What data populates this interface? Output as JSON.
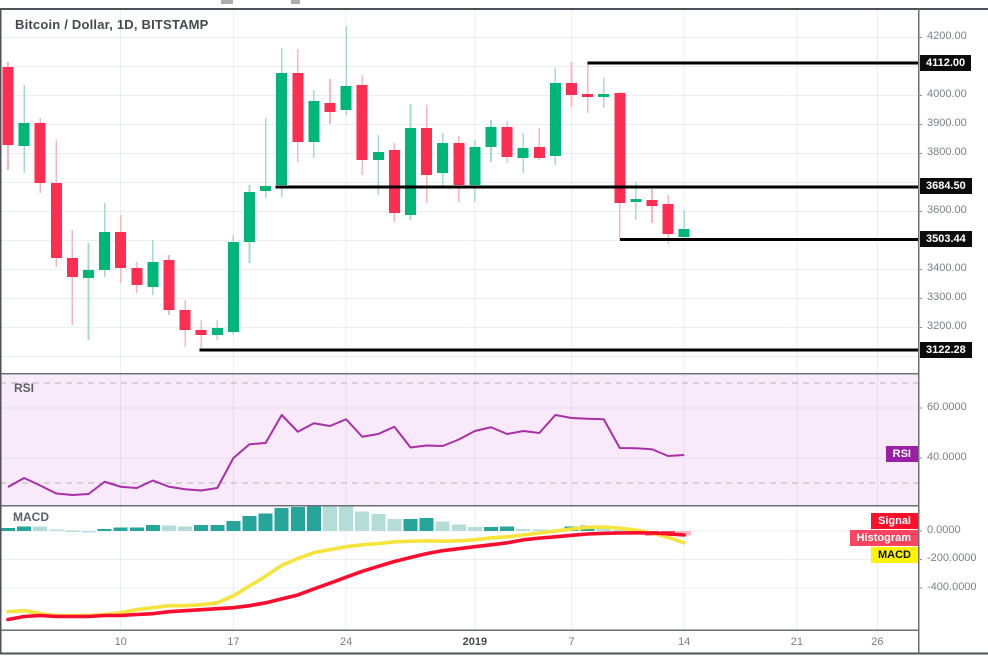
{
  "title": "Bitcoin / Dollar, 1D, BITSTAMP",
  "panes": {
    "rsi_label": "RSI",
    "macd_label": "MACD"
  },
  "badges": {
    "rsi": "RSI",
    "signal": "Signal",
    "histogram": "Histogram",
    "macd": "MACD"
  },
  "price_axis": {
    "ticks": [
      {
        "value": 4200,
        "label": "4200.00"
      },
      {
        "value": 4000,
        "label": "4000.00"
      },
      {
        "value": 3900,
        "label": "3900.00"
      },
      {
        "value": 3800,
        "label": "3800.00"
      },
      {
        "value": 3600,
        "label": "3600.00"
      },
      {
        "value": 3400,
        "label": "3400.00"
      },
      {
        "value": 3300,
        "label": "3300.00"
      },
      {
        "value": 3200,
        "label": "3200.00"
      }
    ]
  },
  "rsi_axis": {
    "ticks": [
      {
        "value": 60,
        "label": "60.0000"
      },
      {
        "value": 40,
        "label": "40.0000"
      }
    ],
    "band_levels": [
      70,
      30
    ]
  },
  "macd_axis": {
    "ticks": [
      {
        "value": 0,
        "label": "0.0000"
      },
      {
        "value": -200,
        "label": "-200.0000"
      },
      {
        "value": -400,
        "label": "-400.0000"
      }
    ]
  },
  "time_axis": {
    "ticks": [
      {
        "label": "10",
        "index": 7,
        "bold": false
      },
      {
        "label": "17",
        "index": 14,
        "bold": false
      },
      {
        "label": "24",
        "index": 21,
        "bold": false
      },
      {
        "label": "2019",
        "index": 29,
        "bold": true
      },
      {
        "label": "7",
        "index": 35,
        "bold": false
      },
      {
        "label": "14",
        "index": 42,
        "bold": false
      },
      {
        "label": "21",
        "index": 49,
        "bold": false
      },
      {
        "label": "26",
        "index": 54,
        "bold": false
      }
    ]
  },
  "chart_data": {
    "type": "candlestick",
    "title": "Bitcoin / Dollar, 1D, BITSTAMP",
    "price_range_visible": [
      3046,
      4295
    ],
    "grid_prices": [
      4200,
      4100,
      4000,
      3900,
      3800,
      3700,
      3600,
      3500,
      3400,
      3300,
      3200,
      3100
    ],
    "dates": [
      "2018-12-03",
      "2018-12-04",
      "2018-12-05",
      "2018-12-06",
      "2018-12-07",
      "2018-12-08",
      "2018-12-09",
      "2018-12-10",
      "2018-12-11",
      "2018-12-12",
      "2018-12-13",
      "2018-12-14",
      "2018-12-15",
      "2018-12-16",
      "2018-12-17",
      "2018-12-18",
      "2018-12-19",
      "2018-12-20",
      "2018-12-21",
      "2018-12-22",
      "2018-12-23",
      "2018-12-24",
      "2018-12-25",
      "2018-12-26",
      "2018-12-27",
      "2018-12-28",
      "2018-12-29",
      "2018-12-30",
      "2018-12-31",
      "2019-01-01",
      "2019-01-02",
      "2019-01-03",
      "2019-01-04",
      "2019-01-05",
      "2019-01-06",
      "2019-01-07",
      "2019-01-08",
      "2019-01-09",
      "2019-01-10",
      "2019-01-11",
      "2019-01-12",
      "2019-01-13",
      "2019-01-14"
    ],
    "ohlc": [
      [
        4098,
        4115,
        3743,
        3829
      ],
      [
        3826,
        4036,
        3733,
        3905
      ],
      [
        3905,
        3922,
        3664,
        3698
      ],
      [
        3698,
        3846,
        3409,
        3440
      ],
      [
        3440,
        3536,
        3208,
        3374
      ],
      [
        3371,
        3491,
        3157,
        3398
      ],
      [
        3398,
        3629,
        3374,
        3529
      ],
      [
        3529,
        3588,
        3353,
        3405
      ],
      [
        3405,
        3426,
        3319,
        3347
      ],
      [
        3340,
        3502,
        3312,
        3426
      ],
      [
        3433,
        3450,
        3243,
        3260
      ],
      [
        3260,
        3295,
        3133,
        3191
      ],
      [
        3191,
        3226,
        3129,
        3174
      ],
      [
        3174,
        3226,
        3157,
        3198
      ],
      [
        3184,
        3519,
        3174,
        3495
      ],
      [
        3495,
        3691,
        3422,
        3667
      ],
      [
        3671,
        3922,
        3647,
        3688
      ],
      [
        3691,
        4164,
        3650,
        4078
      ],
      [
        4078,
        4160,
        3771,
        3840
      ],
      [
        3840,
        4019,
        3784,
        3981
      ],
      [
        3974,
        4057,
        3902,
        3943
      ],
      [
        3950,
        4240,
        3933,
        4033
      ],
      [
        4036,
        4071,
        3726,
        3777
      ],
      [
        3777,
        3863,
        3657,
        3805
      ],
      [
        3812,
        3836,
        3564,
        3595
      ],
      [
        3588,
        3971,
        3571,
        3888
      ],
      [
        3888,
        3967,
        3629,
        3726
      ],
      [
        3733,
        3871,
        3691,
        3836
      ],
      [
        3836,
        3860,
        3633,
        3691
      ],
      [
        3691,
        3846,
        3633,
        3822
      ],
      [
        3822,
        3915,
        3770,
        3891
      ],
      [
        3891,
        3912,
        3767,
        3788
      ],
      [
        3784,
        3871,
        3733,
        3819
      ],
      [
        3822,
        3888,
        3777,
        3784
      ],
      [
        3791,
        4095,
        3760,
        4043
      ],
      [
        4043,
        4115,
        3960,
        4002
      ],
      [
        4005,
        4112,
        3940,
        3995
      ],
      [
        3995,
        4060,
        3957,
        4005
      ],
      [
        4009,
        4012,
        3503,
        3629
      ],
      [
        3633,
        3702,
        3571,
        3643
      ],
      [
        3640,
        3678,
        3560,
        3619
      ],
      [
        3626,
        3657,
        3488,
        3522
      ],
      [
        3512,
        3605,
        3502,
        3539
      ]
    ],
    "price_levels": [
      {
        "label": "4112.00",
        "value": 4112.0,
        "start_index": 36
      },
      {
        "label": "3684.50",
        "value": 3684.5,
        "start_index": 16.6
      },
      {
        "label": "3503.44",
        "value": 3503.44,
        "start_index": 38
      },
      {
        "label": "3122.28",
        "value": 3122.28,
        "start_index": 11.9
      }
    ],
    "rsi": [
      28.4,
      32,
      29,
      25.8,
      25.2,
      25.6,
      30.5,
      28.5,
      28,
      31,
      28.5,
      27.5,
      27,
      28,
      40,
      45.5,
      46,
      57.2,
      50.5,
      53.9,
      52.8,
      55.5,
      48.5,
      49.6,
      52.5,
      44.2,
      45,
      44.8,
      47.4,
      50.8,
      52.3,
      49.6,
      50.8,
      50,
      57.2,
      56,
      55.7,
      55.5,
      44,
      43.9,
      43.5,
      40.8,
      41.2
    ],
    "macd": {
      "macd": [
        -566,
        -559,
        -580,
        -593,
        -593,
        -593,
        -586,
        -573,
        -552,
        -538,
        -524,
        -524,
        -517,
        -504,
        -455,
        -386,
        -317,
        -241,
        -193,
        -152,
        -131,
        -110,
        -97,
        -88,
        -76,
        -72,
        -69,
        -72,
        -69,
        -62,
        -48,
        -41,
        -28,
        -14,
        0,
        14,
        26,
        28,
        20,
        7,
        -14,
        -45,
        -83
      ],
      "signal": [
        -621,
        -600,
        -593,
        -600,
        -600,
        -600,
        -593,
        -593,
        -586,
        -580,
        -566,
        -559,
        -552,
        -545,
        -538,
        -524,
        -504,
        -476,
        -449,
        -407,
        -366,
        -324,
        -283,
        -248,
        -214,
        -186,
        -159,
        -138,
        -124,
        -110,
        -97,
        -83,
        -62,
        -50,
        -41,
        -30,
        -21,
        -16,
        -14,
        -13,
        -14,
        -20,
        -28
      ],
      "histogram": [
        20,
        32,
        30,
        9,
        2,
        1,
        14,
        23,
        24,
        41,
        40,
        32,
        41,
        42,
        69,
        106,
        124,
        161,
        170,
        180,
        178,
        172,
        138,
        120,
        83,
        85,
        92,
        65,
        46,
        28,
        28,
        32,
        14,
        9,
        5,
        32,
        37,
        30,
        8,
        -15,
        -30,
        -35,
        -30
      ]
    }
  },
  "colors": {
    "up": "#00b578",
    "up_wick": "#a7dbc8",
    "down": "#fd2e51",
    "down_wick": "#ffb4bd",
    "grid": "rgba(110,140,170,0.14)",
    "level_line": "#000000",
    "axis_text": "#7b7e88",
    "title_text": "#44484f",
    "pane_label_text": "#5b5e66",
    "badge_bg": "#0c0c0c",
    "badge_text": "#ffffff",
    "rsi_line": "#a92fa8",
    "rsi_bg": "#f8eafa",
    "rsi_dash": "#b6b6b6",
    "rsi_badge_bg": "#9b1fa5",
    "hist_pos": "#26a69a",
    "hist_pos_light": "#b3ddd6",
    "hist_neg": "#fa4d62",
    "hist_neg_light": "#fcb8c0",
    "macd_line": "#f6e33b",
    "signal_line": "#fb0d2e",
    "signal_badge_bg": "#ff0f29",
    "histogram_badge_bg": "#fb4560",
    "macd_badge_bg": "#fdf403",
    "macd_badge_text": "#111111",
    "border": "#4f5257",
    "pane_border": "#6b6e74",
    "tick_dash": "#8a8d96"
  }
}
